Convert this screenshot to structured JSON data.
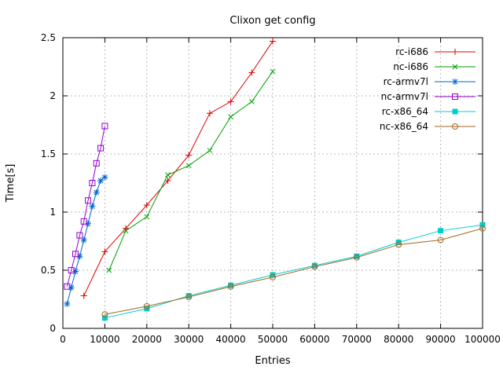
{
  "chart_data": {
    "type": "line",
    "title": "Clixon get config",
    "xlabel": "Entries",
    "ylabel": "Time[s]",
    "xlim": [
      0,
      100000
    ],
    "ylim": [
      0,
      2.5
    ],
    "xticks": [
      0,
      10000,
      20000,
      30000,
      40000,
      50000,
      60000,
      70000,
      80000,
      90000,
      100000
    ],
    "xtick_labels": [
      "0",
      "10000",
      "20000",
      "30000",
      "40000",
      "50000",
      "60000",
      "70000",
      "80000",
      "90000",
      "100000"
    ],
    "yticks": [
      0,
      0.5,
      1,
      1.5,
      2,
      2.5
    ],
    "ytick_labels": [
      "0",
      "0.5",
      "1",
      "1.5",
      "2",
      "2.5"
    ],
    "grid": true,
    "legend_position": "top-right-inside",
    "series": [
      {
        "name": "rc-i686",
        "color": "#dd0000",
        "marker": "plus",
        "points": [
          [
            5000,
            0.28
          ],
          [
            10000,
            0.66
          ],
          [
            15000,
            0.86
          ],
          [
            20000,
            1.06
          ],
          [
            25000,
            1.27
          ],
          [
            30000,
            1.49
          ],
          [
            35000,
            1.85
          ],
          [
            40000,
            1.95
          ],
          [
            45000,
            2.2
          ],
          [
            50000,
            2.47
          ]
        ]
      },
      {
        "name": "nc-i686",
        "color": "#00a000",
        "marker": "cross",
        "points": [
          [
            11000,
            0.5
          ],
          [
            15000,
            0.84
          ],
          [
            20000,
            0.96
          ],
          [
            25000,
            1.32
          ],
          [
            30000,
            1.4
          ],
          [
            35000,
            1.53
          ],
          [
            40000,
            1.82
          ],
          [
            45000,
            1.95
          ],
          [
            50000,
            2.21
          ]
        ]
      },
      {
        "name": "rc-armv7l",
        "color": "#0066cc",
        "marker": "asterisk",
        "points": [
          [
            1000,
            0.21
          ],
          [
            2000,
            0.35
          ],
          [
            3000,
            0.49
          ],
          [
            4000,
            0.62
          ],
          [
            5000,
            0.76
          ],
          [
            6000,
            0.9
          ],
          [
            7000,
            1.05
          ],
          [
            8000,
            1.17
          ],
          [
            9000,
            1.27
          ],
          [
            10000,
            1.3
          ]
        ]
      },
      {
        "name": "nc-armv7l",
        "color": "#9400d3",
        "marker": "square-open",
        "points": [
          [
            1000,
            0.36
          ],
          [
            2000,
            0.5
          ],
          [
            3000,
            0.64
          ],
          [
            4000,
            0.8
          ],
          [
            5000,
            0.92
          ],
          [
            6000,
            1.1
          ],
          [
            7000,
            1.25
          ],
          [
            8000,
            1.42
          ],
          [
            9000,
            1.55
          ],
          [
            10000,
            1.74
          ]
        ]
      },
      {
        "name": "rc-x86_64",
        "color": "#00cccc",
        "marker": "square-filled",
        "points": [
          [
            10000,
            0.09
          ],
          [
            20000,
            0.17
          ],
          [
            30000,
            0.28
          ],
          [
            40000,
            0.37
          ],
          [
            50000,
            0.46
          ],
          [
            60000,
            0.54
          ],
          [
            70000,
            0.62
          ],
          [
            80000,
            0.74
          ],
          [
            90000,
            0.84
          ],
          [
            100000,
            0.89
          ]
        ]
      },
      {
        "name": "nc-x86_64",
        "color": "#a06820",
        "marker": "circle-open",
        "points": [
          [
            10000,
            0.12
          ],
          [
            20000,
            0.19
          ],
          [
            30000,
            0.27
          ],
          [
            40000,
            0.36
          ],
          [
            50000,
            0.44
          ],
          [
            60000,
            0.53
          ],
          [
            70000,
            0.61
          ],
          [
            80000,
            0.72
          ],
          [
            90000,
            0.76
          ],
          [
            100000,
            0.86
          ]
        ]
      }
    ]
  }
}
